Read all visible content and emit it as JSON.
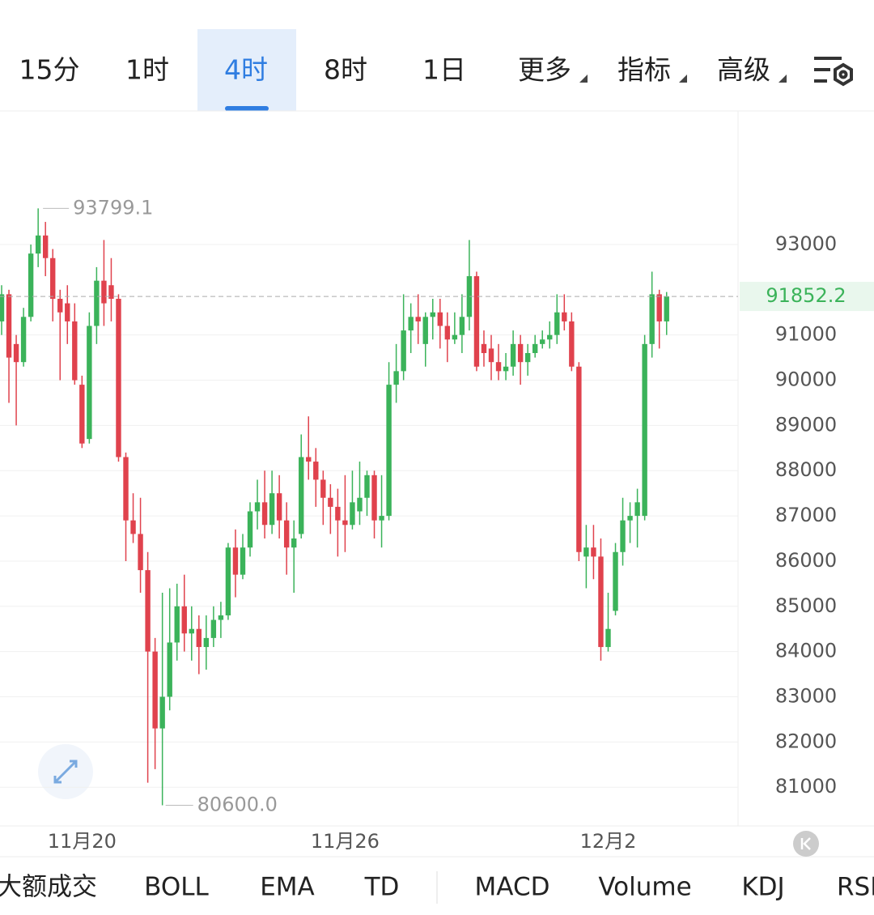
{
  "toolbar": {
    "intervals": [
      "15分",
      "1时",
      "4时",
      "8时",
      "1日"
    ],
    "menus": [
      "更多",
      "指标",
      "高级"
    ],
    "active": 2
  },
  "indicator_tabs": [
    "大额成交",
    "BOLL",
    "EMA",
    "TD",
    "MACD",
    "Volume",
    "KDJ",
    "RSI"
  ],
  "chart_data": {
    "type": "candlestick",
    "categories": [
      null,
      null,
      null,
      null,
      null,
      null,
      null,
      null,
      null,
      null,
      null,
      "11月20",
      null,
      null,
      null,
      null,
      null,
      null,
      null,
      null,
      null,
      null,
      null,
      null,
      null,
      null,
      null,
      null,
      null,
      null,
      null,
      null,
      null,
      null,
      null,
      null,
      null,
      null,
      null,
      null,
      null,
      null,
      null,
      null,
      null,
      null,
      null,
      "11月26",
      null,
      null,
      null,
      null,
      null,
      null,
      null,
      null,
      null,
      null,
      null,
      null,
      null,
      null,
      null,
      null,
      null,
      null,
      null,
      null,
      null,
      null,
      null,
      null,
      null,
      null,
      null,
      null,
      null,
      null,
      null,
      null,
      null,
      null,
      null,
      "12月2",
      null,
      null,
      null,
      null,
      null,
      null,
      null,
      null
    ],
    "open": [
      91300,
      91900,
      90800,
      90400,
      91400,
      92800,
      93200,
      92700,
      91800,
      91700,
      91300,
      89900,
      88700,
      91200,
      92200,
      92100,
      91800,
      88300,
      86900,
      86600,
      85800,
      84000,
      82300,
      83000,
      84200,
      85000,
      84400,
      84500,
      84100,
      84300,
      84700,
      84800,
      86300,
      85700,
      86300,
      87100,
      87300,
      86800,
      87500,
      86900,
      86300,
      86600,
      88300,
      88200,
      87800,
      87400,
      87200,
      86900,
      86800,
      87100,
      87400,
      87900,
      86900,
      87000,
      89900,
      90200,
      91100,
      91400,
      90800,
      91400,
      91500,
      91200,
      90900,
      91000,
      91400,
      92300,
      90800,
      90700,
      90400,
      90200,
      90300,
      90800,
      90400,
      90600,
      90800,
      90900,
      91000,
      91500,
      91300,
      90300,
      86100,
      86300,
      86100,
      84100,
      84900,
      86200,
      86900,
      87000,
      87000,
      90800,
      91900,
      91300
    ],
    "high": [
      92100,
      92000,
      91000,
      91600,
      93000,
      93799.1,
      93500,
      92900,
      92000,
      92100,
      91700,
      90100,
      91500,
      92500,
      93100,
      92700,
      91900,
      88400,
      87500,
      87400,
      86200,
      84300,
      85300,
      85400,
      85500,
      85700,
      85000,
      84800,
      84800,
      85000,
      85100,
      86400,
      86700,
      86600,
      87300,
      87800,
      88000,
      88000,
      87900,
      87300,
      86900,
      88800,
      89200,
      88500,
      88000,
      87700,
      87600,
      87900,
      88000,
      88200,
      88000,
      88000,
      87900,
      90400,
      90800,
      91900,
      91700,
      91900,
      91500,
      91800,
      91800,
      91500,
      91500,
      91900,
      93100,
      92400,
      91100,
      91000,
      90800,
      90600,
      91100,
      91000,
      90800,
      91000,
      91100,
      91300,
      91900,
      91900,
      91500,
      90400,
      86800,
      86800,
      86500,
      85300,
      86400,
      87400,
      87300,
      87600,
      91000,
      92400,
      92000,
      91950
    ],
    "low": [
      91000,
      89500,
      89000,
      90300,
      91300,
      92500,
      92300,
      91300,
      90000,
      90800,
      89900,
      88500,
      88600,
      90800,
      91200,
      91300,
      88200,
      86000,
      86400,
      85300,
      81100,
      81400,
      80600,
      82700,
      83800,
      84000,
      83800,
      83500,
      83600,
      84100,
      84300,
      84700,
      85200,
      85600,
      86100,
      86700,
      86500,
      86600,
      86500,
      85700,
      85300,
      86500,
      87800,
      87200,
      86800,
      86600,
      86100,
      86200,
      86700,
      86800,
      87000,
      86500,
      86300,
      86900,
      89500,
      90000,
      90600,
      90800,
      90300,
      90900,
      90700,
      90400,
      90800,
      90600,
      91100,
      90200,
      90300,
      90000,
      90000,
      90000,
      90100,
      89900,
      90100,
      90500,
      90700,
      90700,
      90800,
      91100,
      90200,
      86000,
      85400,
      85600,
      83800,
      84000,
      84800,
      85900,
      86400,
      86300,
      86900,
      90500,
      90700,
      91000
    ],
    "close": [
      91900,
      90500,
      90400,
      91400,
      92800,
      93200,
      92700,
      91800,
      91500,
      91300,
      90000,
      88600,
      91200,
      92200,
      91700,
      91800,
      88300,
      86900,
      86600,
      85800,
      84000,
      82300,
      83000,
      84200,
      85000,
      84400,
      84500,
      84100,
      84300,
      84700,
      84800,
      86300,
      85700,
      86300,
      87100,
      87300,
      86800,
      87500,
      86900,
      86300,
      86500,
      88300,
      88200,
      87800,
      87400,
      87200,
      86900,
      86800,
      87300,
      87400,
      87900,
      86900,
      87000,
      89900,
      90200,
      91100,
      91400,
      91300,
      91400,
      91500,
      91200,
      90900,
      91000,
      91400,
      92300,
      90300,
      90600,
      90400,
      90200,
      90300,
      90800,
      90400,
      90600,
      90800,
      90900,
      91000,
      91500,
      91300,
      90300,
      86200,
      86300,
      86100,
      84100,
      84500,
      86200,
      86900,
      87000,
      87300,
      90800,
      91900,
      91300,
      91852.2
    ],
    "up_color": "#3bb35a",
    "down_color": "#e0424d",
    "ylim": [
      80180,
      95900
    ],
    "yticks": [
      81000,
      82000,
      83000,
      84000,
      85000,
      86000,
      87000,
      88000,
      89000,
      90000,
      91000,
      93000
    ],
    "grid": true,
    "high_marker": 93799.1,
    "low_marker": {
      "value": 80600,
      "label": "80600.0"
    },
    "last_price": 91852.2
  }
}
